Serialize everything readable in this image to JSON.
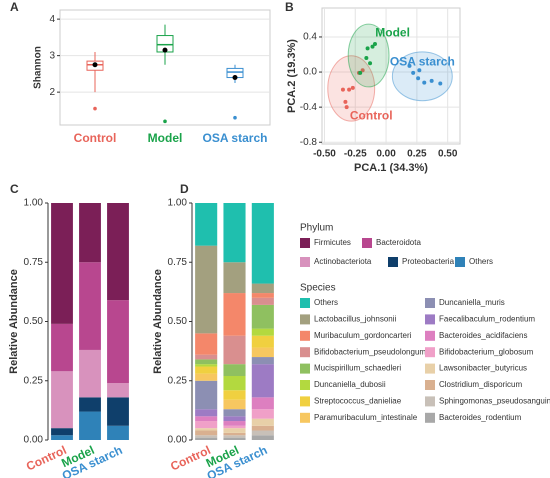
{
  "chart_data": [
    {
      "type": "box",
      "panel_label": "A",
      "ylabel": "Shannon",
      "categories": [
        "Control",
        "Model",
        "OSA starch"
      ],
      "colors": [
        "#e8645a",
        "#1aa34a",
        "#3a8fd0"
      ],
      "min": [
        2.0,
        2.75,
        2.25
      ],
      "q1": [
        2.6,
        3.1,
        2.4
      ],
      "median": [
        2.75,
        3.3,
        2.55
      ],
      "q3": [
        2.85,
        3.55,
        2.65
      ],
      "max": [
        3.1,
        3.85,
        2.75
      ],
      "mean": [
        2.75,
        3.15,
        2.4
      ],
      "outliers": [
        [
          1.55
        ],
        [
          1.2
        ],
        [
          1.3
        ]
      ],
      "ylim": [
        1.1,
        4.25
      ],
      "yticks": [
        2,
        3,
        4
      ],
      "grid": true
    },
    {
      "type": "scatter",
      "panel_label": "B",
      "xlabel": "PCA.1 (34.3%)",
      "ylabel": "PCA.2 (19.3%)",
      "series": [
        {
          "name": "Control",
          "color": "#e8645a",
          "x": [
            -0.3,
            -0.33,
            -0.32,
            -0.27,
            -0.22,
            -0.19,
            -0.35
          ],
          "y": [
            -0.2,
            -0.34,
            -0.4,
            -0.18,
            -0.01,
            0.02,
            -0.2
          ]
        },
        {
          "name": "Model",
          "color": "#1aa34a",
          "x": [
            -0.15,
            -0.11,
            -0.16,
            -0.21,
            -0.09,
            -0.13
          ],
          "y": [
            0.27,
            0.29,
            0.16,
            -0.01,
            0.32,
            0.1
          ]
        },
        {
          "name": "OSA starch",
          "color": "#3a8fd0",
          "x": [
            0.19,
            0.26,
            0.31,
            0.37,
            0.44,
            0.27,
            0.22
          ],
          "y": [
            0.07,
            -0.07,
            -0.12,
            -0.1,
            -0.13,
            0.02,
            -0.01
          ]
        }
      ],
      "xlim": [
        -0.52,
        0.6
      ],
      "xticks": [
        {
          "value": -0.5,
          "label": "-0.50"
        },
        {
          "value": -0.25,
          "label": "-0.25"
        },
        {
          "value": 0,
          "label": "0.00"
        },
        {
          "value": 0.25,
          "label": "0.25"
        },
        {
          "value": 0.5,
          "label": "0.50"
        }
      ],
      "ylim": [
        -0.82,
        0.73
      ],
      "yticks": [
        -0.8,
        -0.4,
        {
          "value": 0,
          "label": "0.0"
        },
        0.4
      ],
      "grid": true
    },
    {
      "type": "bar",
      "stacked": true,
      "panel_label": "C",
      "ylabel": "Relative Abundance",
      "legend_title": "Phylum",
      "categories": [
        "Control",
        "Model",
        "OSA starch"
      ],
      "category_colors": [
        "#e8645a",
        "#1aa34a",
        "#3a8fd0"
      ],
      "series": [
        {
          "name": "Firmicutes",
          "color": "#7b1f57",
          "values": [
            0.51,
            0.25,
            0.41
          ]
        },
        {
          "name": "Bacteroidota",
          "color": "#b8478f",
          "values": [
            0.2,
            0.37,
            0.35
          ]
        },
        {
          "name": "Actinobacteriota",
          "color": "#d892bd",
          "values": [
            0.24,
            0.2,
            0.06
          ]
        },
        {
          "name": "Proteobacteria",
          "color": "#0f3f6b",
          "values": [
            0.03,
            0.06,
            0.12
          ]
        },
        {
          "name": "Others",
          "color": "#2f82b8",
          "values": [
            0.02,
            0.12,
            0.06
          ]
        }
      ],
      "ylim": [
        0,
        1
      ],
      "yticks": [
        {
          "value": 0,
          "label": "0.00"
        },
        {
          "value": 0.25,
          "label": "0.25"
        },
        {
          "value": 0.5,
          "label": "0.50"
        },
        {
          "value": 0.75,
          "label": "0.75"
        },
        {
          "value": 1,
          "label": "1.00"
        }
      ]
    },
    {
      "type": "bar",
      "stacked": true,
      "panel_label": "D",
      "ylabel": "Relative Abundance",
      "legend_title": "Species",
      "categories": [
        "Control",
        "Model",
        "OSA starch"
      ],
      "category_colors": [
        "#e8645a",
        "#1aa34a",
        "#3a8fd0"
      ],
      "series": [
        {
          "name": "Others",
          "color": "#1fbfae",
          "values": [
            0.18,
            0.25,
            0.34
          ]
        },
        {
          "name": "Lactobacillus_johnsonii",
          "color": "#a3a07f",
          "values": [
            0.37,
            0.13,
            0.04
          ]
        },
        {
          "name": "Muribaculum_gordoncarteri",
          "color": "#f4876a",
          "values": [
            0.09,
            0.18,
            0.02
          ]
        },
        {
          "name": "Bifidobacterium_pseudolongum",
          "color": "#d98f8f",
          "values": [
            0.02,
            0.12,
            0.03
          ]
        },
        {
          "name": "Mucispirillum_schaedleri",
          "color": "#8fc060",
          "values": [
            0.02,
            0.05,
            0.1
          ]
        },
        {
          "name": "Duncaniella_dubosii",
          "color": "#b3d93f",
          "values": [
            0.01,
            0.06,
            0.03
          ]
        },
        {
          "name": "Streptococcus_danieliae",
          "color": "#f0d040",
          "values": [
            0.03,
            0.04,
            0.05
          ]
        },
        {
          "name": "Paramuribaculum_intestinale",
          "color": "#f7c760",
          "values": [
            0.03,
            0.04,
            0.04
          ]
        },
        {
          "name": "Duncaniella_muris",
          "color": "#8c8fb3",
          "values": [
            0.12,
            0.03,
            0.03
          ]
        },
        {
          "name": "Faecalibaculum_rodentium",
          "color": "#9d7bc4",
          "values": [
            0.03,
            0.02,
            0.14
          ]
        },
        {
          "name": "Bacteroides_acidifaciens",
          "color": "#dd7fc0",
          "values": [
            0.02,
            0.02,
            0.05
          ]
        },
        {
          "name": "Bifidobacterium_globosum",
          "color": "#f0a0c8",
          "values": [
            0.03,
            0.01,
            0.04
          ]
        },
        {
          "name": "Lawsonibacter_butyricus",
          "color": "#e8d0a8",
          "values": [
            0.01,
            0.02,
            0.03
          ]
        },
        {
          "name": "Clostridium_disporicum",
          "color": "#d9b090",
          "values": [
            0.02,
            0.01,
            0.02
          ]
        },
        {
          "name": "Sphingomonas_pseudosanguinis",
          "color": "#c8c0b8",
          "values": [
            0.01,
            0.01,
            0.02
          ]
        },
        {
          "name": "Bacteroides_rodentium",
          "color": "#a8a8a8",
          "values": [
            0.01,
            0.01,
            0.02
          ]
        }
      ],
      "ylim": [
        0,
        1
      ],
      "yticks": [
        {
          "value": 0,
          "label": "0.00"
        },
        {
          "value": 0.25,
          "label": "0.25"
        },
        {
          "value": 0.5,
          "label": "0.50"
        },
        {
          "value": 0.75,
          "label": "0.75"
        },
        {
          "value": 1,
          "label": "1.00"
        }
      ]
    }
  ]
}
